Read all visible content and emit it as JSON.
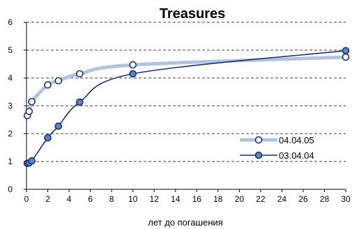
{
  "chart_data": {
    "type": "line",
    "title": "Treasures",
    "xlabel": "лет до погашения",
    "ylabel": "",
    "xlim": [
      0,
      30
    ],
    "ylim": [
      0,
      6
    ],
    "xticks": [
      0,
      2,
      4,
      6,
      8,
      10,
      12,
      14,
      16,
      18,
      20,
      22,
      24,
      26,
      28,
      30
    ],
    "yticks": [
      0,
      1,
      2,
      3,
      4,
      5,
      6
    ],
    "grid": "horizontal dashed",
    "legend_position": "right",
    "series": [
      {
        "name": "04.04.05",
        "color": "#b3c3dc",
        "marker_color": "#ffffff",
        "x": [
          0.08,
          0.25,
          0.5,
          2,
          3,
          5,
          10,
          30
        ],
        "y": [
          2.65,
          2.8,
          3.15,
          3.75,
          3.9,
          4.15,
          4.47,
          4.75
        ]
      },
      {
        "name": "03.04.04",
        "color": "#1f2f6e",
        "marker_color": "#5b86c5",
        "x": [
          0.08,
          0.25,
          0.5,
          2,
          3,
          5,
          10,
          30
        ],
        "y": [
          0.93,
          0.95,
          1.02,
          1.85,
          2.27,
          3.13,
          4.15,
          4.98
        ]
      }
    ]
  }
}
